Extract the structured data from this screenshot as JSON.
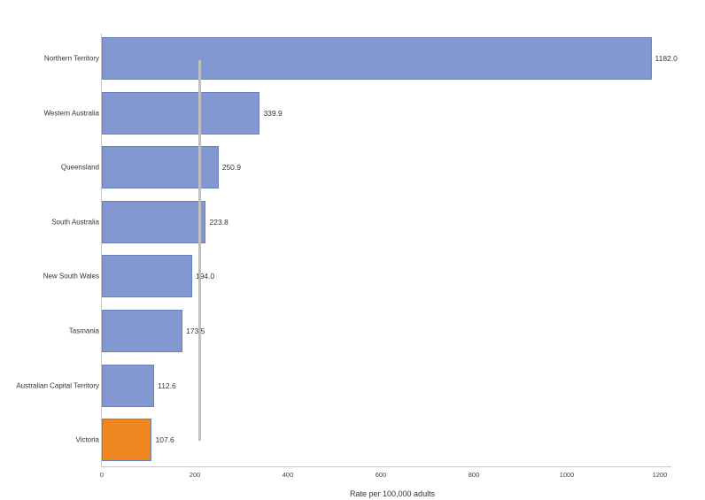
{
  "chart_data": {
    "type": "bar",
    "orientation": "horizontal",
    "title": "",
    "xlabel": "Rate per 100,000 adults",
    "ylabel": "",
    "xlim": [
      0,
      1200
    ],
    "xticks": [
      0,
      200,
      400,
      600,
      800,
      1000,
      1200
    ],
    "categories": [
      "Northern Territory",
      "Western Australia",
      "Queensland",
      "South Australia",
      "New South Wales",
      "Tasmania",
      "Australian Capital Territory",
      "Victoria"
    ],
    "values": [
      1182.0,
      339.9,
      250.9,
      223.8,
      194.0,
      173.5,
      112.6,
      107.6
    ],
    "value_labels": [
      "1182.0",
      "339.9",
      "250.9",
      "223.8",
      "194.0",
      "173.5",
      "112.6",
      "107.6"
    ],
    "highlight_category": "Victoria",
    "reference_line": {
      "value": 209,
      "label": ""
    },
    "colors": {
      "default_bar": "#8398d0",
      "highlight_bar": "#f0861f",
      "reference_line": "#c0c0c0"
    },
    "grid": false,
    "legend": null
  }
}
